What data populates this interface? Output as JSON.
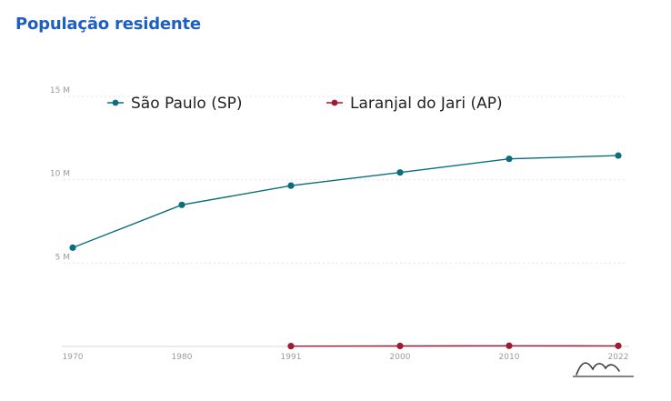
{
  "page": {
    "title": "População residente"
  },
  "chart_data": {
    "type": "line",
    "title": "População residente",
    "xlabel": "",
    "ylabel": "",
    "x": [
      "1970",
      "1980",
      "1991",
      "2000",
      "2010",
      "2022"
    ],
    "ylim": [
      0,
      15000000
    ],
    "y_ticks": [
      {
        "value": 5000000,
        "label": "5 M"
      },
      {
        "value": 10000000,
        "label": "10 M"
      },
      {
        "value": 15000000,
        "label": "15 M"
      }
    ],
    "grid": "horizontal dotted",
    "legend_position": "top",
    "series": [
      {
        "name": "São Paulo (SP)",
        "color": "#0b6e7e",
        "values": [
          5924615,
          8493226,
          9646185,
          10434252,
          11253503,
          11451245
        ]
      },
      {
        "name": "Laranjal do Jari (AP)",
        "color": "#9e1b32",
        "values": [
          null,
          null,
          18539,
          28515,
          39942,
          35114
        ]
      }
    ]
  },
  "icons": {
    "brand": "mountain-logo-icon"
  }
}
